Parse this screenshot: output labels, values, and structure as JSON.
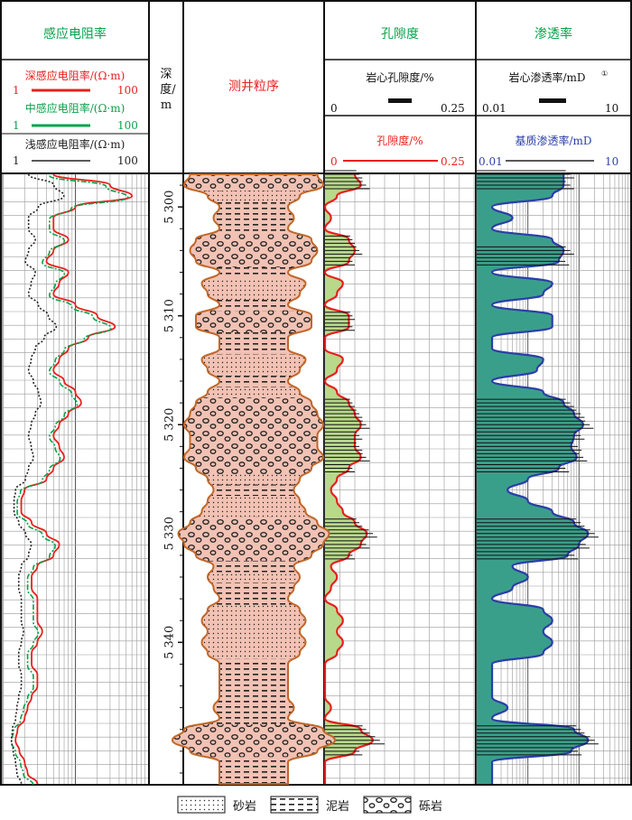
{
  "headers": {
    "resistivity": "感应电阻率",
    "depth_label_1": "深",
    "depth_label_2": "度/",
    "depth_label_3": "m",
    "sequence": "测井粒序",
    "porosity": "孔隙度",
    "permeability": "渗透率"
  },
  "resistivity_curves": [
    {
      "name": "深感应电阻率/(Ω·m)",
      "min": "1",
      "max": "100",
      "color": "#e8201e"
    },
    {
      "name": "中感应电阻率/(Ω·m)",
      "min": "1",
      "max": "100",
      "color": "#0aa24b"
    },
    {
      "name": "浅感应电阻率/(Ω·m)",
      "min": "1",
      "max": "100",
      "color": "#222222"
    }
  ],
  "porosity_curves": {
    "core": {
      "name": "岩心孔隙度/%",
      "min": "0",
      "max": "0.25",
      "color": "#111111"
    },
    "log": {
      "name": "孔隙度/%",
      "min": "0",
      "max": "0.25",
      "color": "#e8201e"
    }
  },
  "permeability_curves": {
    "core": {
      "name": "岩心渗透率/mD",
      "sup": "①",
      "min": "0.01",
      "max": "10",
      "color": "#111111"
    },
    "log": {
      "name": "基质渗透率/mD",
      "min": "0.01",
      "max": "10",
      "color": "#2b3ea8"
    }
  },
  "legend": [
    {
      "label": "砂岩",
      "pattern": "dots"
    },
    {
      "label": "泥岩",
      "pattern": "dashes"
    },
    {
      "label": "砾岩",
      "pattern": "pebbles"
    }
  ],
  "chart_data": {
    "type": "line",
    "depth_axis": {
      "ticks": [
        "5 300",
        "5 310",
        "5 320",
        "5 330",
        "5 340"
      ],
      "range": [
        5297,
        5353
      ]
    },
    "porosity_fill_color": "#b8d98a",
    "permeability_fill_color": "#3a9f8a",
    "porosity": {
      "depth": [
        5297,
        5298,
        5299,
        5300,
        5301,
        5302,
        5303,
        5304,
        5305,
        5306,
        5307,
        5308,
        5309,
        5310,
        5311,
        5312,
        5313,
        5314,
        5315,
        5316,
        5317,
        5318,
        5319,
        5320,
        5321,
        5322,
        5323,
        5324,
        5325,
        5326,
        5327,
        5328,
        5329,
        5330,
        5331,
        5332,
        5333,
        5334,
        5335,
        5336,
        5337,
        5338,
        5339,
        5340,
        5341,
        5342,
        5343,
        5344,
        5345,
        5346,
        5347,
        5348,
        5349,
        5350,
        5351,
        5352,
        5353
      ],
      "values": [
        0.05,
        0.06,
        0.02,
        0.0,
        0.01,
        0.0,
        0.04,
        0.05,
        0.04,
        0.0,
        0.03,
        0.02,
        0.0,
        0.04,
        0.04,
        0.0,
        0.0,
        0.03,
        0.02,
        0.0,
        0.02,
        0.04,
        0.05,
        0.06,
        0.05,
        0.05,
        0.06,
        0.04,
        0.02,
        0.01,
        0.02,
        0.03,
        0.05,
        0.07,
        0.06,
        0.04,
        0.01,
        0.02,
        0.01,
        0.0,
        0.02,
        0.03,
        0.02,
        0.03,
        0.02,
        0.0,
        0.0,
        0.0,
        0.0,
        0.01,
        0.0,
        0.06,
        0.08,
        0.05,
        0.0,
        0.0,
        0.0
      ]
    },
    "permeability": {
      "depth": [
        5297,
        5298,
        5299,
        5300,
        5301,
        5302,
        5303,
        5304,
        5305,
        5306,
        5307,
        5308,
        5309,
        5310,
        5311,
        5312,
        5313,
        5314,
        5315,
        5316,
        5317,
        5318,
        5319,
        5320,
        5321,
        5322,
        5323,
        5324,
        5325,
        5326,
        5327,
        5328,
        5329,
        5330,
        5331,
        5332,
        5333,
        5334,
        5335,
        5336,
        5337,
        5338,
        5339,
        5340,
        5341,
        5342,
        5343,
        5344,
        5345,
        5346,
        5347,
        5348,
        5349,
        5350,
        5351,
        5352,
        5353
      ],
      "values": [
        0.5,
        0.5,
        0.3,
        0.02,
        0.05,
        0.02,
        0.3,
        0.5,
        0.4,
        0.02,
        0.3,
        0.2,
        0.02,
        0.3,
        0.3,
        0.02,
        0.02,
        0.2,
        0.15,
        0.02,
        0.2,
        0.5,
        0.8,
        1.2,
        0.8,
        0.7,
        0.9,
        0.4,
        0.1,
        0.04,
        0.1,
        0.3,
        0.8,
        1.5,
        1.0,
        0.6,
        0.05,
        0.1,
        0.05,
        0.02,
        0.2,
        0.3,
        0.2,
        0.3,
        0.2,
        0.02,
        0.02,
        0.02,
        0.02,
        0.04,
        0.02,
        0.8,
        1.5,
        0.7,
        0.02,
        0.02,
        0.02
      ]
    },
    "resistivity_deep": {
      "depth": [
        5297,
        5298,
        5299,
        5300,
        5301,
        5302,
        5303,
        5304,
        5305,
        5306,
        5307,
        5308,
        5309,
        5310,
        5311,
        5312,
        5313,
        5314,
        5315,
        5316,
        5317,
        5318,
        5319,
        5320,
        5321,
        5322,
        5323,
        5324,
        5325,
        5326,
        5327,
        5328,
        5329,
        5330,
        5331,
        5332,
        5333,
        5334,
        5335,
        5336,
        5337,
        5338,
        5339,
        5340,
        5341,
        5342,
        5343,
        5344,
        5345,
        5346,
        5347,
        5348,
        5349,
        5350,
        5351,
        5352,
        5353
      ],
      "values": [
        5,
        30,
        60,
        10,
        5,
        5,
        8,
        5,
        4,
        8,
        6,
        5,
        10,
        20,
        35,
        15,
        8,
        6,
        5,
        7,
        10,
        12,
        8,
        6,
        5,
        6,
        7,
        5,
        4,
        2,
        1.8,
        1.8,
        2.5,
        4,
        6,
        5,
        3,
        2.5,
        2.5,
        3,
        3,
        3,
        3.5,
        3,
        2.5,
        2.5,
        3,
        3,
        2.5,
        2.2,
        2,
        1.6,
        1.5,
        1.7,
        2,
        2.2,
        3
      ]
    }
  }
}
